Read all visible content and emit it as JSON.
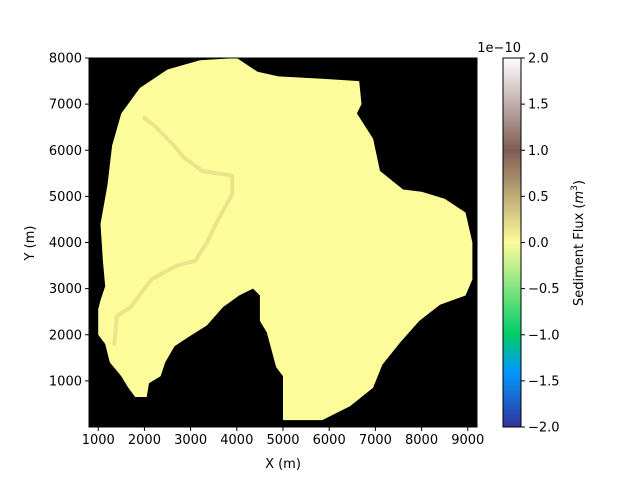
{
  "chart_data": {
    "type": "heatmap",
    "title": "",
    "xlabel": "X (m)",
    "ylabel": "Y (m)",
    "xlim": [
      800,
      9200
    ],
    "ylim": [
      0,
      8000
    ],
    "xticks": [
      1000,
      2000,
      3000,
      4000,
      5000,
      6000,
      7000,
      8000,
      9000
    ],
    "yticks": [
      1000,
      2000,
      3000,
      4000,
      5000,
      6000,
      7000,
      8000
    ],
    "background_color": "#000000",
    "domain_color": "#fdfc9a",
    "channel_color": "#ebe38c",
    "domain_value": 0.0,
    "domain_outline": [
      [
        1000,
        2550
      ],
      [
        1000,
        2000
      ],
      [
        1150,
        1800
      ],
      [
        1250,
        1400
      ],
      [
        1500,
        1100
      ],
      [
        1650,
        850
      ],
      [
        1800,
        650
      ],
      [
        2050,
        650
      ],
      [
        2100,
        950
      ],
      [
        2350,
        1100
      ],
      [
        2450,
        1400
      ],
      [
        2650,
        1750
      ],
      [
        2950,
        1950
      ],
      [
        3350,
        2200
      ],
      [
        3700,
        2600
      ],
      [
        4050,
        2850
      ],
      [
        4350,
        3000
      ],
      [
        4500,
        2850
      ],
      [
        4500,
        2300
      ],
      [
        4650,
        2050
      ],
      [
        4850,
        1300
      ],
      [
        5000,
        1100
      ],
      [
        5000,
        150
      ],
      [
        5850,
        150
      ],
      [
        6450,
        450
      ],
      [
        6950,
        850
      ],
      [
        7150,
        1350
      ],
      [
        7550,
        1850
      ],
      [
        7950,
        2300
      ],
      [
        8400,
        2650
      ],
      [
        8950,
        2850
      ],
      [
        9100,
        3200
      ],
      [
        9100,
        4000
      ],
      [
        8950,
        4650
      ],
      [
        8500,
        4950
      ],
      [
        8000,
        5100
      ],
      [
        7600,
        5150
      ],
      [
        7100,
        5550
      ],
      [
        6950,
        6250
      ],
      [
        6600,
        6800
      ],
      [
        6700,
        7000
      ],
      [
        6650,
        7500
      ],
      [
        5850,
        7550
      ],
      [
        4900,
        7600
      ],
      [
        4450,
        7700
      ],
      [
        4000,
        8000
      ],
      [
        3200,
        7950
      ],
      [
        2500,
        7750
      ],
      [
        1900,
        7350
      ],
      [
        1500,
        6800
      ],
      [
        1300,
        6100
      ],
      [
        1200,
        5250
      ],
      [
        1050,
        4400
      ],
      [
        1100,
        3600
      ],
      [
        1150,
        3050
      ],
      [
        1050,
        2750
      ]
    ],
    "channel_path": [
      [
        2000,
        6700
      ],
      [
        2250,
        6500
      ],
      [
        2550,
        6200
      ],
      [
        2850,
        5850
      ],
      [
        3250,
        5550
      ],
      [
        3900,
        5450
      ],
      [
        3900,
        5050
      ],
      [
        3600,
        4500
      ],
      [
        3350,
        4000
      ],
      [
        3100,
        3600
      ],
      [
        2700,
        3500
      ],
      [
        2150,
        3200
      ],
      [
        1700,
        2600
      ],
      [
        1400,
        2400
      ],
      [
        1350,
        1800
      ]
    ],
    "colorbar": {
      "label": "Sediment Flux ($m^3$)",
      "label_main": "Sediment Flux (",
      "label_unit_base": "m",
      "label_unit_exp": "3",
      "label_close": ")",
      "multiplier": "1e−10",
      "range": [
        -2.0,
        2.0
      ],
      "ticks": [
        -2.0,
        -1.5,
        -1.0,
        -0.5,
        0.0,
        0.5,
        1.0,
        1.5,
        2.0
      ],
      "tick_labels": [
        "−2.0",
        "−1.5",
        "−1.0",
        "−0.5",
        "0.0",
        "0.5",
        "1.0",
        "1.5",
        "2.0"
      ],
      "colormap": "terrain",
      "stops": [
        [
          0.0,
          "#333399"
        ],
        [
          0.15,
          "#0099ff"
        ],
        [
          0.25,
          "#00cc66"
        ],
        [
          0.5,
          "#fdfc9a"
        ],
        [
          0.75,
          "#805c54"
        ],
        [
          1.0,
          "#ffffff"
        ]
      ]
    }
  }
}
